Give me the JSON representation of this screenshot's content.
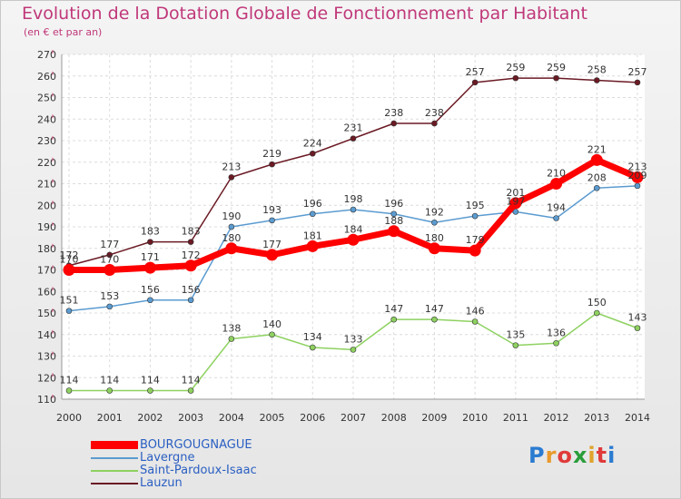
{
  "title": "Evolution de la Dotation Globale de Fonctionnement par Habitant",
  "subtitle": "(en € et par an)",
  "logo": [
    "P",
    "r",
    "o",
    "x",
    "i",
    "t",
    "i"
  ],
  "logo_colors": [
    "#2a7bd1",
    "#e89a2c",
    "#e03a3a",
    "#2a9d3a",
    "#e0a32c",
    "#e03a3a",
    "#2a7bd1"
  ],
  "chart_data": {
    "type": "line",
    "title": "Evolution de la Dotation Globale de Fonctionnement par Habitant",
    "subtitle": "(en € et par an)",
    "xlabel": "",
    "ylabel": "",
    "categories": [
      "2000",
      "2001",
      "2002",
      "2003",
      "2004",
      "2005",
      "2006",
      "2007",
      "2008",
      "2009",
      "2010",
      "2011",
      "2012",
      "2013",
      "2014"
    ],
    "ylim": [
      110,
      270
    ],
    "yticks": [
      110,
      120,
      130,
      140,
      150,
      160,
      170,
      180,
      190,
      200,
      210,
      220,
      230,
      240,
      250,
      260,
      270
    ],
    "grid": true,
    "legend_position": "bottom-left",
    "series": [
      {
        "name": "Lauzun",
        "color": "#6b1a24",
        "values": [
          172,
          177,
          183,
          183,
          213,
          219,
          224,
          231,
          238,
          238,
          257,
          259,
          259,
          258,
          257
        ]
      },
      {
        "name": "Lavergne",
        "color": "#5b9bd0",
        "values": [
          151,
          153,
          156,
          156,
          190,
          193,
          196,
          198,
          196,
          192,
          195,
          197,
          194,
          208,
          209
        ]
      },
      {
        "name": "Saint-Pardoux-Isaac",
        "color": "#8ed160",
        "values": [
          114,
          114,
          114,
          114,
          138,
          140,
          134,
          133,
          147,
          147,
          146,
          135,
          136,
          150,
          143
        ]
      },
      {
        "name": "BOURGOUGNAGUE",
        "color": "#ff0000",
        "values": [
          170,
          170,
          171,
          172,
          180,
          177,
          181,
          184,
          188,
          180,
          179,
          201,
          210,
          221,
          213
        ]
      }
    ],
    "legend": [
      {
        "name": "BOURGOUGNAGUE",
        "color": "#ff0000",
        "text_color": "#2a5fc2"
      },
      {
        "name": "Lavergne",
        "color": "#5b9bd0",
        "text_color": "#2a5fc2"
      },
      {
        "name": "Saint-Pardoux-Isaac",
        "color": "#8ed160",
        "text_color": "#2a5fc2"
      },
      {
        "name": "Lauzun",
        "color": "#6b1a24",
        "text_color": "#2a5fc2"
      }
    ]
  }
}
